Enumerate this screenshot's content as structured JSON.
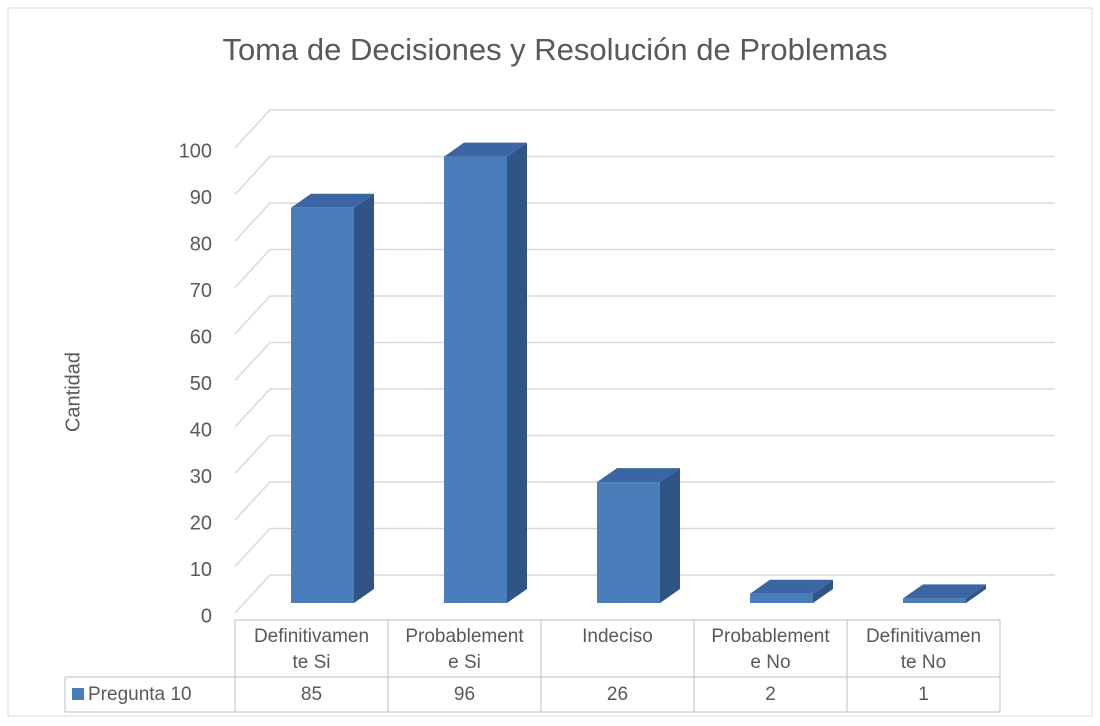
{
  "chart_data": {
    "type": "bar3d",
    "title": "Toma de Decisiones  y Resolución de Problemas",
    "y_label": "Cantidad",
    "categories": [
      "Definitivamente Si",
      "Probablemente Si",
      "Indeciso",
      "Probablemente No",
      "Definitivamente No"
    ],
    "series": [
      {
        "name": "Pregunta 10",
        "color": "#4a7ebb",
        "values": [
          85,
          96,
          26,
          2,
          1
        ]
      }
    ],
    "ylim": [
      0,
      100
    ],
    "yticks": [
      0,
      10,
      20,
      30,
      40,
      50,
      60,
      70,
      80,
      90,
      100
    ],
    "grid": true,
    "data_table": true
  }
}
